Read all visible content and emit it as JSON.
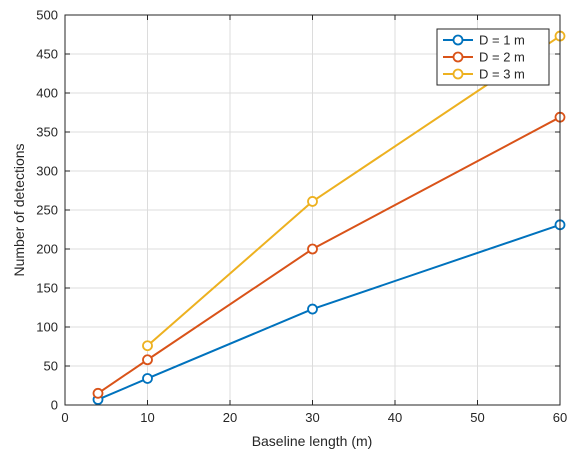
{
  "chart_data": {
    "type": "line",
    "title": "",
    "xlabel": "Baseline length (m)",
    "ylabel": "Number of detections",
    "xlim": [
      0,
      60
    ],
    "ylim": [
      0,
      500
    ],
    "xticks": [
      0,
      10,
      20,
      30,
      40,
      50,
      60
    ],
    "yticks": [
      0,
      50,
      100,
      150,
      200,
      250,
      300,
      350,
      400,
      450,
      500
    ],
    "grid": true,
    "legend_position": "top-right",
    "marker": "circle",
    "x": [
      4,
      10,
      30,
      60
    ],
    "series": [
      {
        "name": "D = 1 m",
        "color": "#0072BD",
        "values": [
          7,
          34,
          123,
          231
        ]
      },
      {
        "name": "D = 2 m",
        "color": "#D95319",
        "values": [
          15,
          58,
          200,
          369
        ]
      },
      {
        "name": "D = 3 m",
        "color": "#EDB120",
        "values": [
          null,
          76,
          261,
          473
        ]
      }
    ]
  }
}
